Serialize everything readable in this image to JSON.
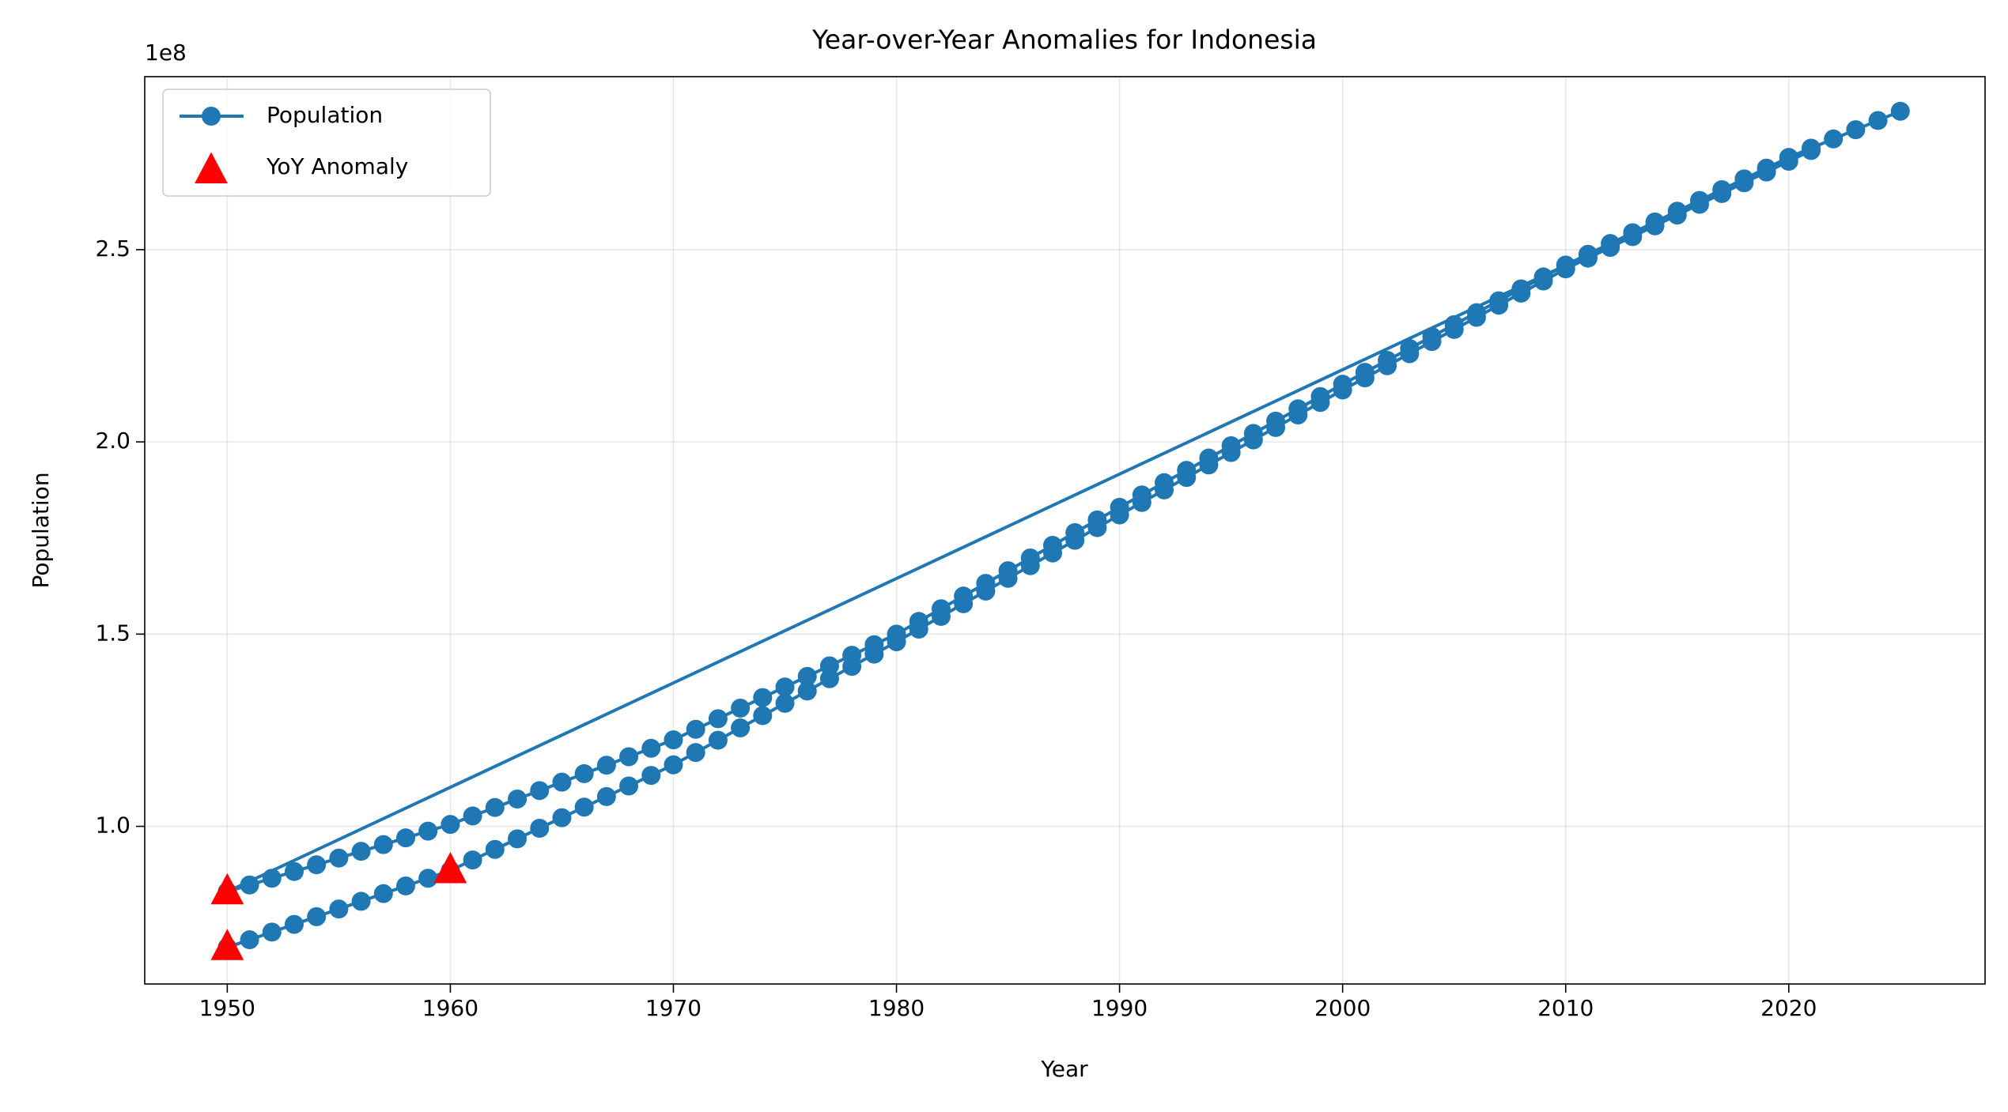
{
  "chart_data": {
    "type": "line",
    "title": "Year-over-Year Anomalies for Indonesia",
    "x_label": "Year",
    "y_label": "Population",
    "y_offset_label": "1e8",
    "xlim": [
      1946.3,
      2028.8
    ],
    "ylim": [
      59000000,
      295000000
    ],
    "xticks": [
      1950,
      1960,
      1970,
      1980,
      1990,
      2000,
      2010,
      2020
    ],
    "yticks": [
      {
        "value": 100000000,
        "label": "1.0"
      },
      {
        "value": 150000000,
        "label": "1.5"
      },
      {
        "value": 200000000,
        "label": "2.0"
      },
      {
        "value": 250000000,
        "label": "2.5"
      }
    ],
    "grid": true,
    "legend": "upper left",
    "series": [
      {
        "name": "Population",
        "type": "line",
        "marker": "circle",
        "color": "#1f77b4",
        "x": [
          1950,
          1951,
          1952,
          1953,
          1954,
          1955,
          1956,
          1957,
          1958,
          1959,
          1960,
          1961,
          1962,
          1963,
          1964,
          1965,
          1966,
          1967,
          1968,
          1969,
          1970,
          1971,
          1972,
          1973,
          1974,
          1975,
          1976,
          1977,
          1978,
          1979,
          1980,
          1981,
          1982,
          1983,
          1984,
          1985,
          1986,
          1987,
          1988,
          1989,
          1990,
          1991,
          1992,
          1993,
          1994,
          1995,
          1996,
          1997,
          1998,
          1999,
          2000,
          2001,
          2002,
          2003,
          2004,
          2005,
          2006,
          2007,
          2008,
          2009,
          2010,
          2011,
          2012,
          2013,
          2014,
          2015,
          2016,
          2017,
          2018,
          2019,
          2020,
          2021,
          1950,
          1951,
          1952,
          1953,
          1954,
          1955,
          1956,
          1957,
          1958,
          1959,
          1960,
          1961,
          1962,
          1963,
          1964,
          1965,
          1966,
          1967,
          1968,
          1969,
          1970,
          1971,
          1972,
          1973,
          1974,
          1975,
          1976,
          1977,
          1978,
          1979,
          1980,
          1981,
          1982,
          1983,
          1984,
          1985,
          1986,
          1987,
          1988,
          1989,
          1990,
          1991,
          1992,
          1993,
          1994,
          1995,
          1996,
          1997,
          1998,
          1999,
          2000,
          2001,
          2002,
          2003,
          2004,
          2005,
          2006,
          2007,
          2008,
          2009,
          2010,
          2011,
          2012,
          2013,
          2014,
          2015,
          2016,
          2017,
          2018,
          2019,
          2020,
          2021,
          2022,
          2023,
          2024,
          2025
        ],
        "values": [
          68500000,
          70500000,
          72500000,
          74500000,
          76500000,
          78500000,
          80500000,
          82500000,
          84500000,
          86500000,
          88500000,
          91250000,
          94000000,
          96750000,
          99500000,
          102250000,
          105000000,
          107750000,
          110500000,
          113250000,
          116000000,
          119200000,
          122400000,
          125600000,
          128800000,
          132000000,
          135200000,
          138400000,
          141600000,
          144800000,
          148000000,
          151300000,
          154600000,
          157900000,
          161200000,
          164500000,
          167800000,
          171100000,
          174400000,
          177700000,
          181000000,
          184250000,
          187500000,
          190750000,
          194000000,
          197250000,
          200500000,
          203750000,
          207000000,
          210250000,
          213500000,
          216650000,
          219800000,
          222950000,
          226100000,
          229250000,
          232400000,
          235550000,
          238700000,
          241850000,
          245000000,
          247800000,
          250600000,
          253400000,
          256200000,
          259000000,
          261800000,
          264600000,
          267400000,
          270200000,
          273000000,
          275800000,
          83000000,
          84750000,
          86500000,
          88250000,
          90000000,
          91750000,
          93500000,
          95250000,
          97000000,
          98750000,
          100500000,
          102700000,
          104900000,
          107100000,
          109300000,
          111500000,
          113700000,
          115900000,
          118100000,
          120300000,
          122500000,
          125250000,
          128000000,
          130750000,
          133500000,
          136250000,
          139000000,
          141750000,
          144500000,
          147250000,
          150000000,
          153300000,
          156600000,
          159900000,
          163200000,
          166500000,
          169800000,
          173100000,
          176400000,
          179700000,
          183000000,
          186200000,
          189400000,
          192600000,
          195800000,
          199000000,
          202200000,
          205400000,
          208600000,
          211800000,
          215000000,
          218100000,
          221200000,
          224300000,
          227400000,
          230500000,
          233600000,
          236700000,
          239800000,
          242900000,
          246000000,
          248800000,
          251600000,
          254400000,
          257200000,
          260000000,
          262800000,
          265600000,
          268400000,
          271200000,
          274000000,
          276400000,
          278800000,
          281200000,
          283600000,
          286000000
        ]
      },
      {
        "name": "YoY Anomaly",
        "type": "scatter",
        "marker": "triangle",
        "color": "#ff0000",
        "x": [
          1950,
          1950,
          1960
        ],
        "values": [
          68500000,
          83000000,
          88500000
        ]
      }
    ]
  }
}
